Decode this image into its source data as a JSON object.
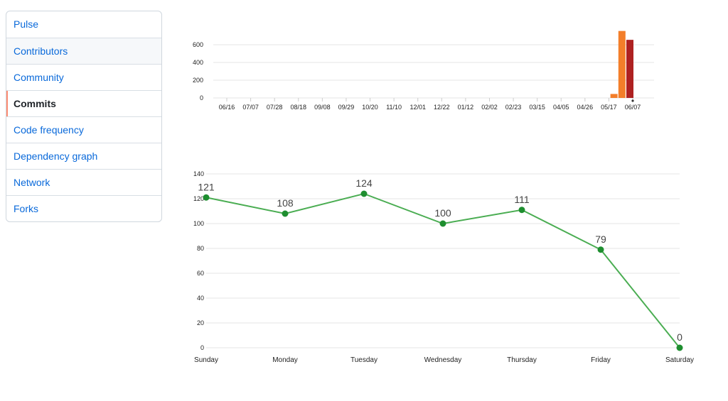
{
  "sidebar": {
    "items": [
      {
        "label": "Pulse",
        "state": "default"
      },
      {
        "label": "Contributors",
        "state": "hover"
      },
      {
        "label": "Community",
        "state": "default"
      },
      {
        "label": "Commits",
        "state": "selected"
      },
      {
        "label": "Code frequency",
        "state": "default"
      },
      {
        "label": "Dependency graph",
        "state": "default"
      },
      {
        "label": "Network",
        "state": "default"
      },
      {
        "label": "Forks",
        "state": "default"
      }
    ]
  },
  "colors": {
    "link": "#0969da",
    "selected_indicator": "#fd8c73",
    "bar_orange": "#f37e2a",
    "bar_darkred": "#ae2121",
    "line_green": "#4aad52",
    "point_green": "#1e8e2f"
  },
  "chart_data": [
    {
      "type": "bar",
      "x_tick_labels": [
        "06/16",
        "07/07",
        "07/28",
        "08/18",
        "09/08",
        "09/29",
        "10/20",
        "11/10",
        "12/01",
        "12/22",
        "01/12",
        "02/02",
        "02/23",
        "03/15",
        "04/05",
        "04/26",
        "05/17",
        "06/07"
      ],
      "y_ticks": [
        0,
        200,
        400,
        600
      ],
      "ylim": [
        0,
        760
      ],
      "grid": true,
      "bars": [
        {
          "week": "05/31",
          "value": 45,
          "color": "orange"
        },
        {
          "week": "06/07",
          "value": 755,
          "color": "orange"
        },
        {
          "week": "06/14",
          "value": 655,
          "color": "darkred"
        }
      ],
      "title": "",
      "xlabel": "",
      "ylabel": ""
    },
    {
      "type": "line",
      "categories": [
        "Sunday",
        "Monday",
        "Tuesday",
        "Wednesday",
        "Thursday",
        "Friday",
        "Saturday"
      ],
      "values": [
        121,
        108,
        124,
        100,
        111,
        79,
        0
      ],
      "y_ticks": [
        0,
        20,
        40,
        60,
        80,
        100,
        120,
        140
      ],
      "ylim": [
        0,
        140
      ],
      "grid": true,
      "data_labels": true,
      "title": "",
      "xlabel": "",
      "ylabel": ""
    }
  ]
}
